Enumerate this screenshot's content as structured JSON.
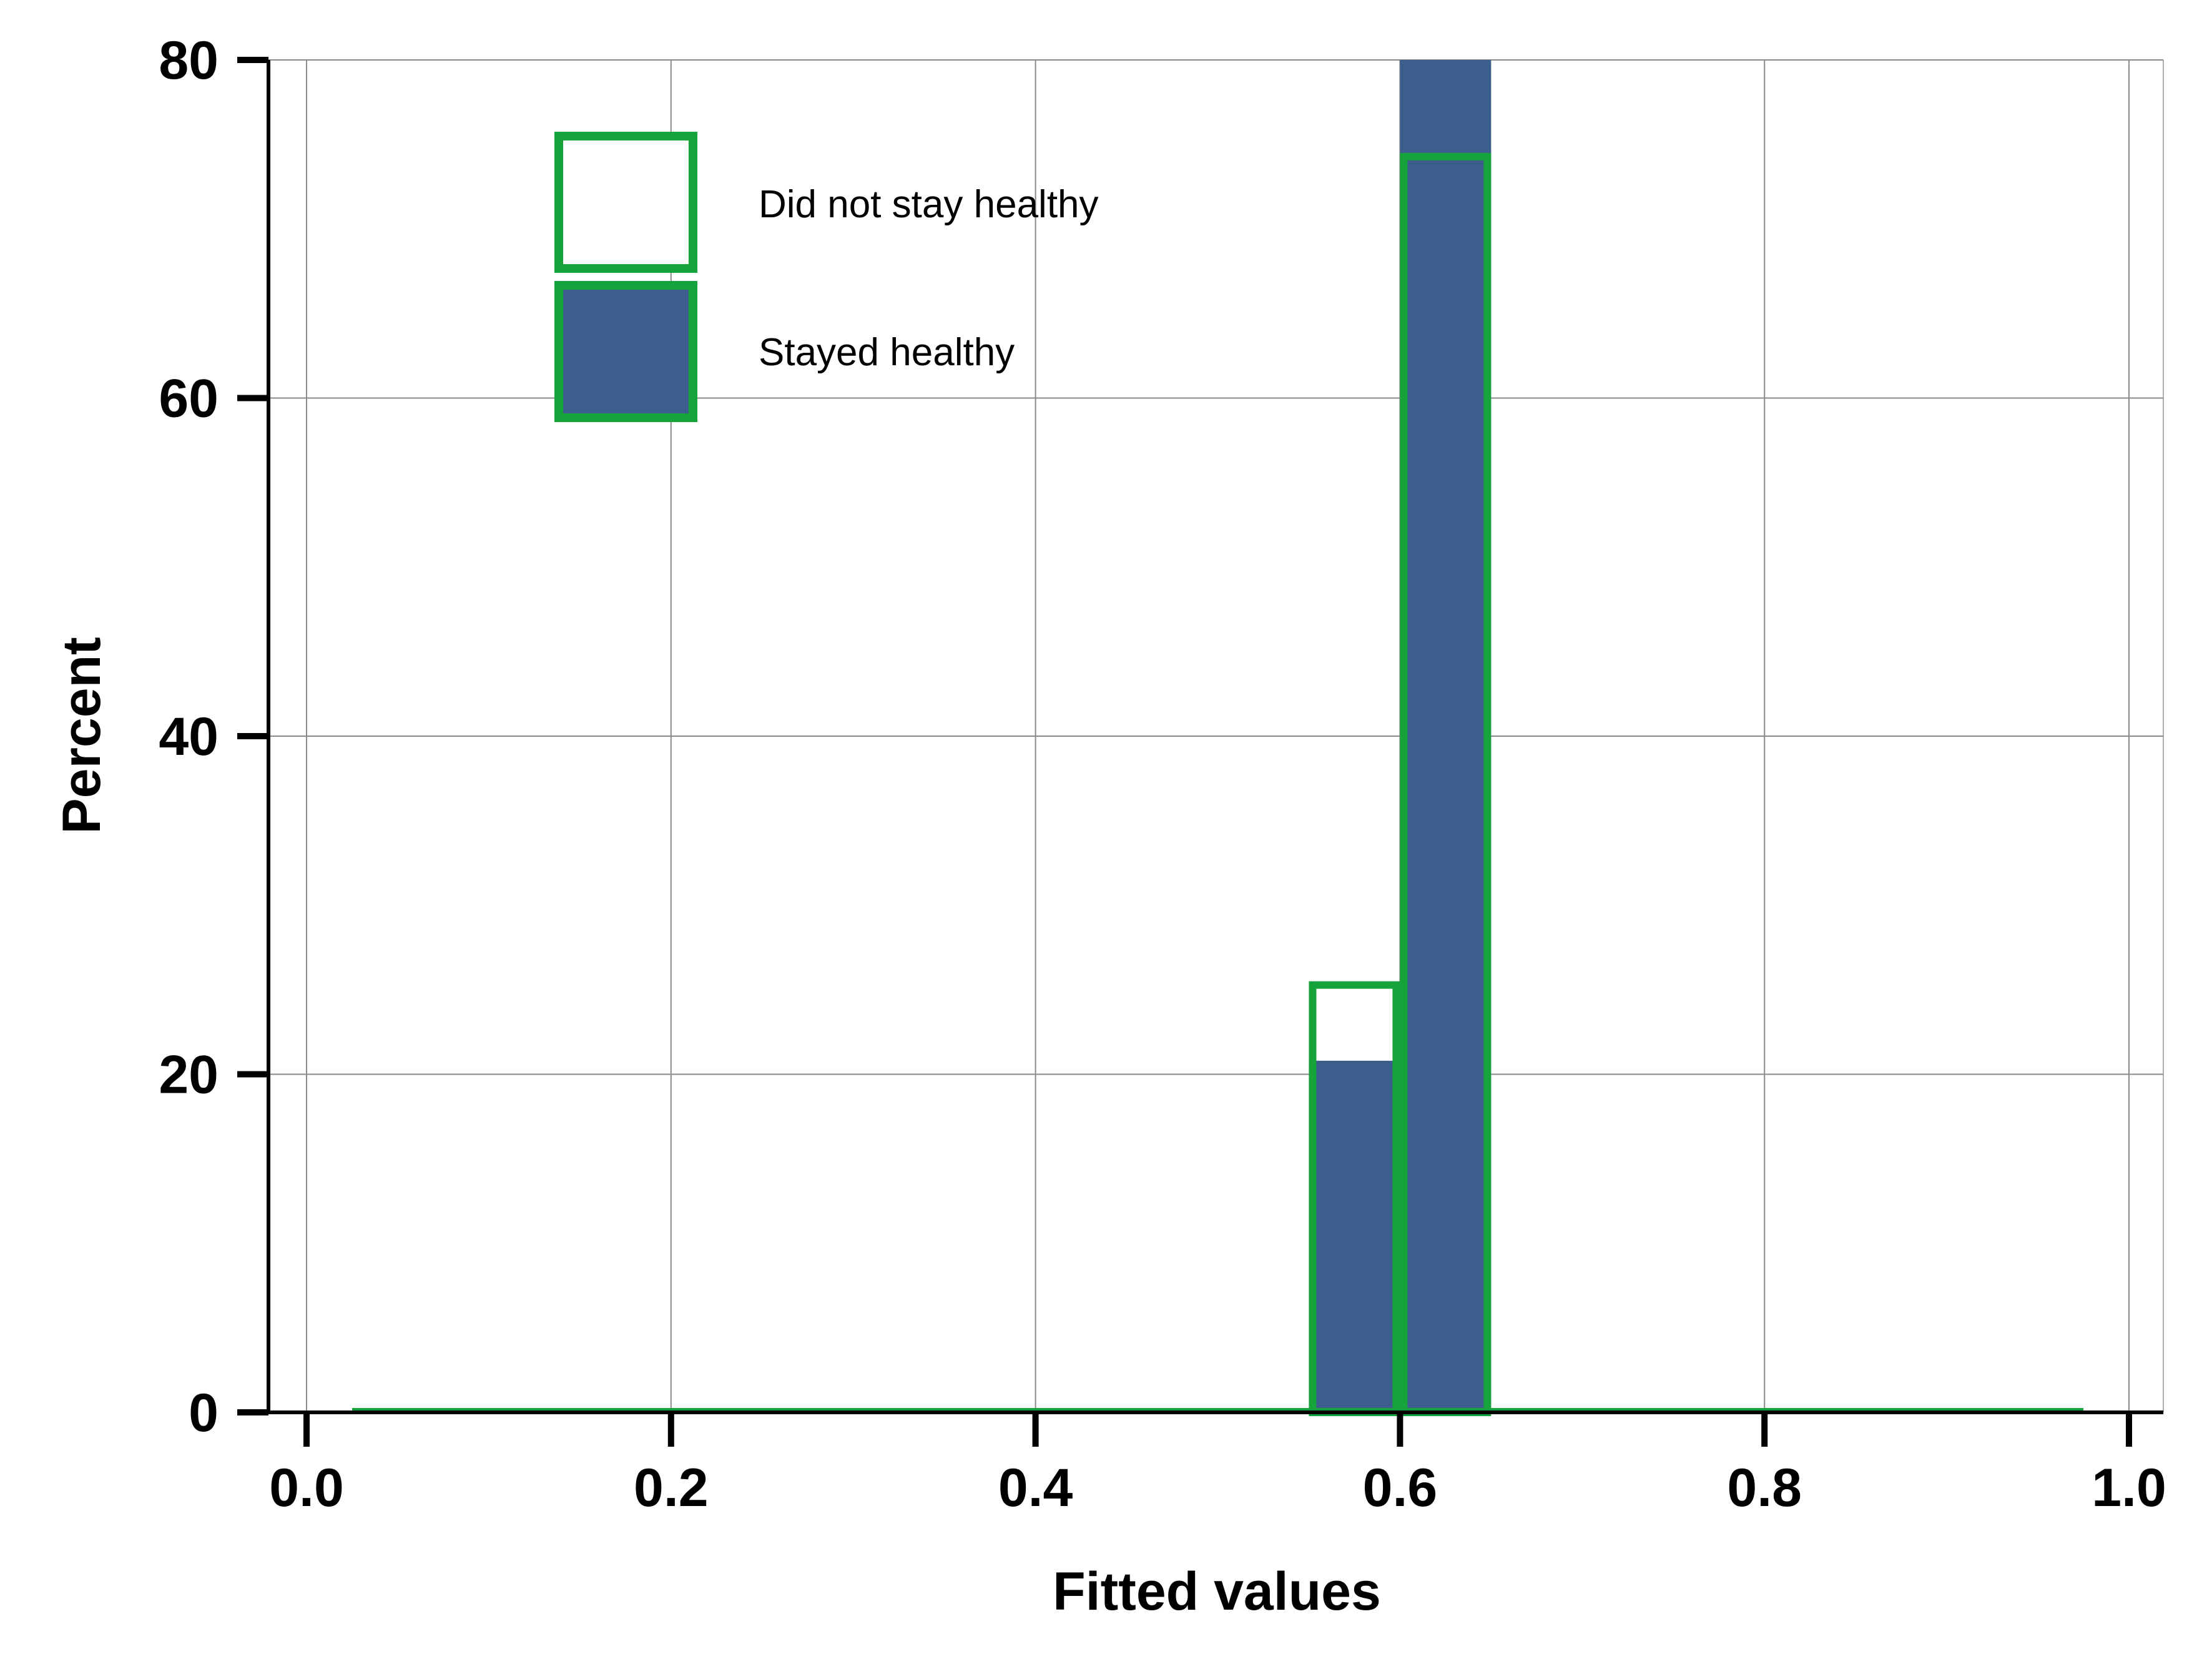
{
  "chart_data": {
    "type": "bar",
    "subtype": "overlaid-histogram",
    "title": "",
    "xlabel": "Fitted values",
    "ylabel": "Percent",
    "xlim": [
      0,
      1
    ],
    "ylim": [
      0,
      80
    ],
    "xticks": [
      "0.0",
      "0.2",
      "0.4",
      "0.6",
      "0.8",
      "1.0"
    ],
    "yticks": [
      "0",
      "20",
      "40",
      "60",
      "80"
    ],
    "grid": true,
    "legend_position": "top-left",
    "bin_width": 0.05,
    "series": [
      {
        "name": "Stayed healthy",
        "style": "filled",
        "color": "#3b5e8c",
        "bins": [
          {
            "x0": 0.55,
            "x1": 0.6,
            "value": 20.8
          },
          {
            "x0": 0.6,
            "x1": 0.65,
            "value": 80
          }
        ]
      },
      {
        "name": "Did not stay healthy",
        "style": "outline",
        "color": "#17a33b",
        "bins": [
          {
            "x0": 0.55,
            "x1": 0.6,
            "value": 25.5
          },
          {
            "x0": 0.6,
            "x1": 0.65,
            "value": 74.5
          }
        ],
        "baseline_range": [
          0.025,
          0.975
        ]
      }
    ]
  }
}
